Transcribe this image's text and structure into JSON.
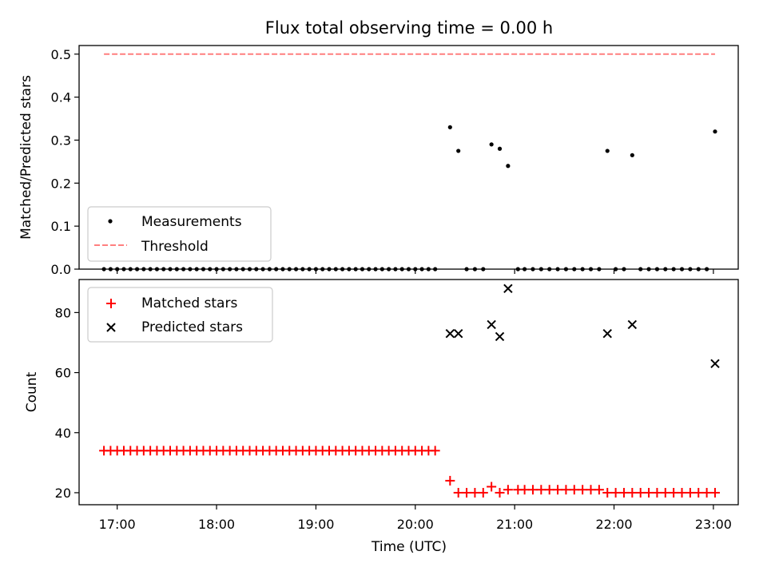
{
  "chart_data": {
    "type": "scatter",
    "title": "Flux total observing time = 0.00 h",
    "xlabel": "Time (UTC)",
    "xlim": [
      "16:37",
      "23:15"
    ],
    "x_ticks": [
      "17:00",
      "18:00",
      "19:00",
      "20:00",
      "21:00",
      "22:00",
      "23:00"
    ],
    "panels": [
      {
        "ylabel": "Matched/Predicted stars",
        "ylim": [
          0,
          0.52
        ],
        "y_ticks": [
          "0.0",
          "0.1",
          "0.2",
          "0.3",
          "0.4",
          "0.5"
        ],
        "legend_position": "lower-left",
        "series": [
          {
            "name": "Measurements",
            "marker": "dot",
            "color": "#000000",
            "points": [
              [
                "16:52",
                0
              ],
              [
                "16:56",
                0
              ],
              [
                "17:00",
                0
              ],
              [
                "17:04",
                0
              ],
              [
                "17:08",
                0
              ],
              [
                "17:12",
                0
              ],
              [
                "17:16",
                0
              ],
              [
                "17:20",
                0
              ],
              [
                "17:24",
                0
              ],
              [
                "17:28",
                0
              ],
              [
                "17:32",
                0
              ],
              [
                "17:36",
                0
              ],
              [
                "17:40",
                0
              ],
              [
                "17:44",
                0
              ],
              [
                "17:48",
                0
              ],
              [
                "17:52",
                0
              ],
              [
                "17:56",
                0
              ],
              [
                "18:00",
                0
              ],
              [
                "18:04",
                0
              ],
              [
                "18:08",
                0
              ],
              [
                "18:12",
                0
              ],
              [
                "18:16",
                0
              ],
              [
                "18:20",
                0
              ],
              [
                "18:24",
                0
              ],
              [
                "18:28",
                0
              ],
              [
                "18:32",
                0
              ],
              [
                "18:36",
                0
              ],
              [
                "18:40",
                0
              ],
              [
                "18:44",
                0
              ],
              [
                "18:48",
                0
              ],
              [
                "18:52",
                0
              ],
              [
                "18:56",
                0
              ],
              [
                "19:00",
                0
              ],
              [
                "19:04",
                0
              ],
              [
                "19:08",
                0
              ],
              [
                "19:12",
                0
              ],
              [
                "19:16",
                0
              ],
              [
                "19:20",
                0
              ],
              [
                "19:24",
                0
              ],
              [
                "19:28",
                0
              ],
              [
                "19:32",
                0
              ],
              [
                "19:36",
                0
              ],
              [
                "19:40",
                0
              ],
              [
                "19:44",
                0
              ],
              [
                "19:48",
                0
              ],
              [
                "19:52",
                0
              ],
              [
                "19:56",
                0
              ],
              [
                "20:00",
                0
              ],
              [
                "20:04",
                0
              ],
              [
                "20:08",
                0
              ],
              [
                "20:12",
                0
              ],
              [
                "20:21",
                0.33
              ],
              [
                "20:26",
                0.275
              ],
              [
                "20:31",
                0
              ],
              [
                "20:36",
                0
              ],
              [
                "20:41",
                0
              ],
              [
                "20:46",
                0.29
              ],
              [
                "20:51",
                0.28
              ],
              [
                "20:56",
                0.24
              ],
              [
                "21:02",
                0
              ],
              [
                "21:06",
                0
              ],
              [
                "21:11",
                0
              ],
              [
                "21:16",
                0
              ],
              [
                "21:21",
                0
              ],
              [
                "21:26",
                0
              ],
              [
                "21:31",
                0
              ],
              [
                "21:36",
                0
              ],
              [
                "21:41",
                0
              ],
              [
                "21:46",
                0
              ],
              [
                "21:51",
                0
              ],
              [
                "21:56",
                0.275
              ],
              [
                "22:01",
                0
              ],
              [
                "22:06",
                0
              ],
              [
                "22:11",
                0.265
              ],
              [
                "22:16",
                0
              ],
              [
                "22:21",
                0
              ],
              [
                "22:26",
                0
              ],
              [
                "22:31",
                0
              ],
              [
                "22:36",
                0
              ],
              [
                "22:41",
                0
              ],
              [
                "22:46",
                0
              ],
              [
                "22:51",
                0
              ],
              [
                "22:56",
                0
              ],
              [
                "23:01",
                0.32
              ]
            ]
          },
          {
            "name": "Threshold",
            "marker": "dashed-line",
            "color": "#ff7f7f",
            "points": [
              [
                "16:52",
                0.5
              ],
              [
                "23:01",
                0.5
              ]
            ]
          }
        ]
      },
      {
        "ylabel": "Count",
        "ylim": [
          16,
          91
        ],
        "y_ticks": [
          "20",
          "40",
          "60",
          "80"
        ],
        "legend_position": "upper-left",
        "series": [
          {
            "name": "Matched stars",
            "marker": "plus",
            "color": "#ff0000",
            "points": [
              [
                "16:52",
                34
              ],
              [
                "16:56",
                34
              ],
              [
                "17:00",
                34
              ],
              [
                "17:04",
                34
              ],
              [
                "17:08",
                34
              ],
              [
                "17:12",
                34
              ],
              [
                "17:16",
                34
              ],
              [
                "17:20",
                34
              ],
              [
                "17:24",
                34
              ],
              [
                "17:28",
                34
              ],
              [
                "17:32",
                34
              ],
              [
                "17:36",
                34
              ],
              [
                "17:40",
                34
              ],
              [
                "17:44",
                34
              ],
              [
                "17:48",
                34
              ],
              [
                "17:52",
                34
              ],
              [
                "17:56",
                34
              ],
              [
                "18:00",
                34
              ],
              [
                "18:04",
                34
              ],
              [
                "18:08",
                34
              ],
              [
                "18:12",
                34
              ],
              [
                "18:16",
                34
              ],
              [
                "18:20",
                34
              ],
              [
                "18:24",
                34
              ],
              [
                "18:28",
                34
              ],
              [
                "18:32",
                34
              ],
              [
                "18:36",
                34
              ],
              [
                "18:40",
                34
              ],
              [
                "18:44",
                34
              ],
              [
                "18:48",
                34
              ],
              [
                "18:52",
                34
              ],
              [
                "18:56",
                34
              ],
              [
                "19:00",
                34
              ],
              [
                "19:04",
                34
              ],
              [
                "19:08",
                34
              ],
              [
                "19:12",
                34
              ],
              [
                "19:16",
                34
              ],
              [
                "19:20",
                34
              ],
              [
                "19:24",
                34
              ],
              [
                "19:28",
                34
              ],
              [
                "19:32",
                34
              ],
              [
                "19:36",
                34
              ],
              [
                "19:40",
                34
              ],
              [
                "19:44",
                34
              ],
              [
                "19:48",
                34
              ],
              [
                "19:52",
                34
              ],
              [
                "19:56",
                34
              ],
              [
                "20:00",
                34
              ],
              [
                "20:04",
                34
              ],
              [
                "20:08",
                34
              ],
              [
                "20:12",
                34
              ],
              [
                "20:21",
                24
              ],
              [
                "20:26",
                20
              ],
              [
                "20:31",
                20
              ],
              [
                "20:36",
                20
              ],
              [
                "20:41",
                20
              ],
              [
                "20:46",
                22
              ],
              [
                "20:51",
                20
              ],
              [
                "20:56",
                21
              ],
              [
                "21:02",
                21
              ],
              [
                "21:06",
                21
              ],
              [
                "21:11",
                21
              ],
              [
                "21:16",
                21
              ],
              [
                "21:21",
                21
              ],
              [
                "21:26",
                21
              ],
              [
                "21:31",
                21
              ],
              [
                "21:36",
                21
              ],
              [
                "21:41",
                21
              ],
              [
                "21:46",
                21
              ],
              [
                "21:51",
                21
              ],
              [
                "21:56",
                20
              ],
              [
                "22:01",
                20
              ],
              [
                "22:06",
                20
              ],
              [
                "22:11",
                20
              ],
              [
                "22:16",
                20
              ],
              [
                "22:21",
                20
              ],
              [
                "22:26",
                20
              ],
              [
                "22:31",
                20
              ],
              [
                "22:36",
                20
              ],
              [
                "22:41",
                20
              ],
              [
                "22:46",
                20
              ],
              [
                "22:51",
                20
              ],
              [
                "22:56",
                20
              ],
              [
                "23:01",
                20
              ]
            ]
          },
          {
            "name": "Predicted stars",
            "marker": "x",
            "color": "#000000",
            "points": [
              [
                "20:21",
                73
              ],
              [
                "20:26",
                73
              ],
              [
                "20:46",
                76
              ],
              [
                "20:51",
                72
              ],
              [
                "20:56",
                88
              ],
              [
                "21:56",
                73
              ],
              [
                "22:11",
                76
              ],
              [
                "23:01",
                63
              ]
            ]
          }
        ]
      }
    ]
  }
}
